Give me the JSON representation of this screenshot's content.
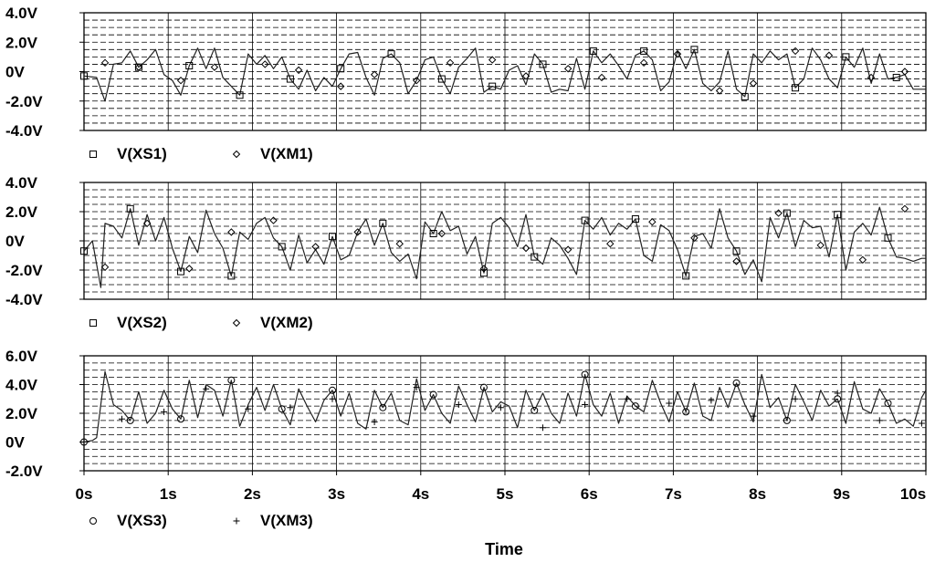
{
  "chart_data": [
    {
      "type": "line",
      "ylim": [
        -4.0,
        4.0
      ],
      "y_ticks": [
        4.0,
        2.0,
        0,
        -2.0,
        -4.0
      ],
      "y_tick_labels": [
        "4.0V",
        "2.0V",
        "0V",
        "-2.0V",
        "-4.0V"
      ],
      "grid": true,
      "legend_placement": "bottom-left",
      "series": [
        {
          "name": "V(XS1)",
          "marker": "square",
          "x": [
            0,
            0.15,
            0.25,
            0.35,
            0.45,
            0.55,
            0.65,
            0.75,
            0.85,
            0.95,
            1.05,
            1.15,
            1.25,
            1.35,
            1.45,
            1.55,
            1.65,
            1.75,
            1.85,
            1.95,
            2.05,
            2.15,
            2.25,
            2.35,
            2.45,
            2.55,
            2.65,
            2.75,
            2.85,
            2.95,
            3.05,
            3.15,
            3.25,
            3.35,
            3.45,
            3.55,
            3.65,
            3.75,
            3.85,
            3.95,
            4.05,
            4.15,
            4.25,
            4.35,
            4.45,
            4.55,
            4.65,
            4.75,
            4.85,
            4.95,
            5.05,
            5.15,
            5.25,
            5.35,
            5.45,
            5.55,
            5.65,
            5.75,
            5.85,
            5.95,
            6.05,
            6.15,
            6.25,
            6.35,
            6.45,
            6.55,
            6.65,
            6.75,
            6.85,
            6.95,
            7.05,
            7.15,
            7.25,
            7.35,
            7.45,
            7.55,
            7.65,
            7.75,
            7.85,
            7.95,
            8.05,
            8.15,
            8.25,
            8.35,
            8.45,
            8.55,
            8.65,
            8.75,
            8.85,
            8.95,
            9.05,
            9.15,
            9.25,
            9.35,
            9.45,
            9.55,
            9.65,
            9.75,
            9.85,
            9.95,
            10.0
          ],
          "y": [
            -0.3,
            -0.4,
            -2.0,
            0.5,
            0.6,
            1.4,
            0.3,
            0.8,
            1.5,
            -0.2,
            -0.6,
            -1.6,
            0.4,
            1.6,
            0.2,
            1.6,
            -0.4,
            -1.0,
            -1.6,
            1.2,
            0.5,
            1.1,
            0.2,
            1.0,
            -0.5,
            -1.2,
            0.1,
            -1.3,
            -0.4,
            -1.0,
            0.2,
            1.2,
            1.3,
            -0.4,
            -1.6,
            0.9,
            1.2,
            0.6,
            -1.5,
            -0.6,
            0.8,
            1.0,
            -0.5,
            -1.5,
            0.3,
            0.9,
            1.6,
            -1.4,
            -1.0,
            -1.2,
            0.1,
            0.4,
            -0.9,
            1.2,
            0.5,
            -1.4,
            -1.2,
            -1.3,
            0.9,
            -1.2,
            1.4,
            0.6,
            1.2,
            0.4,
            -0.5,
            1.1,
            1.4,
            0.8,
            -1.3,
            -0.7,
            1.4,
            0.2,
            1.5,
            -0.8,
            -1.3,
            -0.7,
            1.4,
            -1.2,
            -1.7,
            1.2,
            0.6,
            1.4,
            0.8,
            1.2,
            -1.1,
            -0.5,
            1.6,
            0.8,
            -0.5,
            -1.1,
            1.0,
            0.3,
            1.6,
            -0.8,
            1.2,
            -0.5,
            -0.4,
            -0.2,
            -1.2,
            -1.2,
            -1.2
          ]
        },
        {
          "name": "V(XM1)",
          "marker": "diamond",
          "x": [
            0.25,
            0.65,
            1.15,
            1.55,
            2.15,
            2.55,
            3.05,
            3.45,
            3.95,
            4.35,
            4.85,
            5.25,
            5.75,
            6.15,
            6.65,
            7.05,
            7.55,
            7.95,
            8.45,
            8.85,
            9.35,
            9.75
          ],
          "y": [
            0.6,
            0.3,
            -0.6,
            0.3,
            0.5,
            0.1,
            -1.0,
            -0.2,
            -0.6,
            0.6,
            0.8,
            -0.3,
            0.2,
            -0.4,
            0.6,
            1.2,
            -1.3,
            -0.8,
            1.4,
            1.1,
            -0.4,
            0.0
          ]
        }
      ]
    },
    {
      "type": "line",
      "ylim": [
        -4.0,
        4.0
      ],
      "y_ticks": [
        4.0,
        2.0,
        0,
        -2.0,
        -4.0
      ],
      "y_tick_labels": [
        "4.0V",
        "2.0V",
        "0V",
        "-2.0V",
        "-4.0V"
      ],
      "grid": true,
      "legend_placement": "bottom-left",
      "series": [
        {
          "name": "V(XS2)",
          "marker": "square",
          "x": [
            0,
            0.1,
            0.2,
            0.25,
            0.35,
            0.45,
            0.55,
            0.65,
            0.75,
            0.85,
            0.95,
            1.05,
            1.15,
            1.25,
            1.35,
            1.45,
            1.55,
            1.65,
            1.75,
            1.85,
            1.95,
            2.05,
            2.15,
            2.25,
            2.35,
            2.45,
            2.55,
            2.65,
            2.75,
            2.85,
            2.95,
            3.05,
            3.15,
            3.25,
            3.35,
            3.45,
            3.55,
            3.65,
            3.75,
            3.85,
            3.95,
            4.05,
            4.15,
            4.25,
            4.35,
            4.45,
            4.55,
            4.65,
            4.75,
            4.85,
            4.95,
            5.05,
            5.15,
            5.25,
            5.35,
            5.45,
            5.55,
            5.65,
            5.75,
            5.85,
            5.95,
            6.05,
            6.15,
            6.25,
            6.35,
            6.45,
            6.55,
            6.65,
            6.75,
            6.85,
            6.95,
            7.05,
            7.15,
            7.25,
            7.35,
            7.45,
            7.55,
            7.65,
            7.75,
            7.85,
            7.95,
            8.05,
            8.15,
            8.25,
            8.35,
            8.45,
            8.55,
            8.65,
            8.75,
            8.85,
            8.95,
            9.05,
            9.15,
            9.25,
            9.35,
            9.45,
            9.55,
            9.65,
            9.75,
            9.85,
            9.95,
            10.0
          ],
          "y": [
            -0.7,
            0.0,
            -3.2,
            1.2,
            1.0,
            0.2,
            2.2,
            -0.3,
            1.8,
            0.0,
            1.6,
            -0.5,
            -2.1,
            0.3,
            -0.8,
            2.1,
            0.5,
            -0.5,
            -2.4,
            0.6,
            0.1,
            1.2,
            1.6,
            0.2,
            -0.4,
            -2.0,
            0.4,
            -1.5,
            -0.6,
            -1.6,
            0.3,
            -1.3,
            -1.0,
            0.6,
            1.5,
            -0.3,
            1.2,
            -0.8,
            -1.4,
            -0.9,
            -2.6,
            1.3,
            0.5,
            2.0,
            0.7,
            1.0,
            -0.9,
            0.3,
            -2.2,
            1.2,
            1.6,
            0.9,
            -0.4,
            1.8,
            -1.1,
            -1.6,
            0.2,
            -0.3,
            -1.2,
            -2.3,
            1.4,
            0.8,
            1.6,
            0.4,
            1.2,
            0.8,
            1.5,
            -1.0,
            -1.4,
            1.1,
            0.7,
            -0.6,
            -2.4,
            0.3,
            0.5,
            -0.5,
            2.2,
            0.2,
            -0.7,
            -2.3,
            -1.3,
            -2.8,
            1.6,
            0.2,
            1.9,
            -0.4,
            1.4,
            0.9,
            1.0,
            -1.1,
            1.8,
            -2.0,
            0.6,
            1.2,
            0.4,
            2.3,
            0.2,
            -1.1,
            -1.2,
            -1.4,
            -1.2,
            -1.2
          ]
        },
        {
          "name": "V(XM2)",
          "marker": "diamond",
          "x": [
            0.25,
            0.75,
            1.25,
            1.75,
            2.25,
            2.75,
            3.25,
            3.75,
            4.25,
            4.75,
            5.25,
            5.75,
            6.25,
            6.75,
            7.25,
            7.75,
            8.25,
            8.75,
            9.25,
            9.75
          ],
          "y": [
            -1.8,
            1.2,
            -1.9,
            0.6,
            1.4,
            -0.4,
            0.6,
            -0.2,
            0.5,
            -1.9,
            -0.5,
            -0.6,
            -0.2,
            1.3,
            0.2,
            -1.4,
            1.9,
            -0.3,
            -1.3,
            2.2
          ]
        }
      ]
    },
    {
      "type": "line",
      "ylim": [
        -2.0,
        6.0
      ],
      "y_ticks": [
        6.0,
        4.0,
        2.0,
        0,
        -2.0
      ],
      "y_tick_labels": [
        "6.0V",
        "4.0V",
        "2.0V",
        "0V",
        "-2.0V"
      ],
      "x_ticks": [
        0,
        1,
        2,
        3,
        4,
        5,
        6,
        7,
        8,
        9,
        10
      ],
      "x_tick_labels": [
        "0s",
        "1s",
        "2s",
        "3s",
        "4s",
        "5s",
        "6s",
        "7s",
        "8s",
        "9s",
        "10s"
      ],
      "xlim": [
        0,
        10.0
      ],
      "xlabel": "Time",
      "grid": true,
      "legend_placement": "bottom-left",
      "series": [
        {
          "name": "V(XS3)",
          "marker": "circle",
          "x": [
            0,
            0.1,
            0.15,
            0.25,
            0.35,
            0.45,
            0.55,
            0.65,
            0.75,
            0.85,
            0.95,
            1.05,
            1.15,
            1.25,
            1.35,
            1.45,
            1.55,
            1.65,
            1.75,
            1.85,
            1.95,
            2.05,
            2.15,
            2.25,
            2.35,
            2.45,
            2.55,
            2.65,
            2.75,
            2.85,
            2.95,
            3.05,
            3.15,
            3.25,
            3.35,
            3.45,
            3.55,
            3.65,
            3.75,
            3.85,
            3.95,
            4.05,
            4.15,
            4.25,
            4.35,
            4.45,
            4.55,
            4.65,
            4.75,
            4.85,
            4.95,
            5.05,
            5.15,
            5.25,
            5.35,
            5.45,
            5.55,
            5.65,
            5.75,
            5.85,
            5.95,
            6.05,
            6.15,
            6.25,
            6.35,
            6.45,
            6.55,
            6.65,
            6.75,
            6.85,
            6.95,
            7.05,
            7.15,
            7.25,
            7.35,
            7.45,
            7.55,
            7.65,
            7.75,
            7.85,
            7.95,
            8.05,
            8.15,
            8.25,
            8.35,
            8.45,
            8.55,
            8.65,
            8.75,
            8.85,
            8.95,
            9.05,
            9.15,
            9.25,
            9.35,
            9.45,
            9.55,
            9.65,
            9.75,
            9.85,
            9.95,
            10.0
          ],
          "y": [
            0.0,
            0.1,
            0.3,
            4.9,
            2.6,
            2.2,
            1.5,
            3.5,
            1.3,
            2.0,
            3.6,
            2.3,
            1.6,
            4.3,
            1.7,
            4.0,
            3.6,
            1.8,
            4.3,
            1.1,
            2.6,
            3.8,
            2.2,
            4.0,
            2.3,
            1.2,
            3.7,
            2.5,
            1.4,
            2.9,
            3.6,
            1.8,
            3.4,
            1.3,
            0.9,
            3.6,
            2.4,
            3.4,
            1.5,
            1.2,
            4.4,
            2.2,
            3.3,
            2.0,
            1.3,
            3.9,
            2.6,
            1.4,
            3.8,
            2.1,
            2.8,
            2.5,
            1.0,
            3.6,
            2.2,
            3.4,
            2.0,
            1.3,
            3.4,
            1.8,
            4.7,
            2.6,
            1.8,
            3.4,
            1.3,
            3.2,
            2.5,
            2.1,
            4.3,
            2.7,
            1.4,
            3.5,
            2.1,
            4.1,
            1.8,
            1.5,
            3.8,
            2.4,
            4.1,
            2.6,
            1.4,
            4.7,
            2.4,
            3.1,
            1.5,
            4.0,
            2.8,
            1.5,
            3.6,
            2.5,
            3.0,
            1.3,
            4.2,
            2.3,
            2.0,
            3.7,
            2.7,
            1.3,
            1.6,
            1.1,
            3.1,
            3.6
          ]
        },
        {
          "name": "V(XM3)",
          "marker": "plus",
          "x": [
            0.45,
            0.95,
            1.45,
            1.95,
            2.45,
            2.95,
            3.45,
            3.95,
            4.45,
            4.95,
            5.45,
            5.95,
            6.45,
            6.95,
            7.45,
            7.95,
            8.45,
            8.95,
            9.45,
            9.95
          ],
          "y": [
            1.6,
            2.1,
            3.7,
            2.3,
            2.4,
            3.0,
            1.4,
            3.8,
            2.6,
            2.4,
            1.0,
            2.6,
            3.0,
            2.7,
            2.9,
            1.8,
            3.0,
            3.4,
            1.5,
            1.3
          ]
        }
      ]
    }
  ]
}
